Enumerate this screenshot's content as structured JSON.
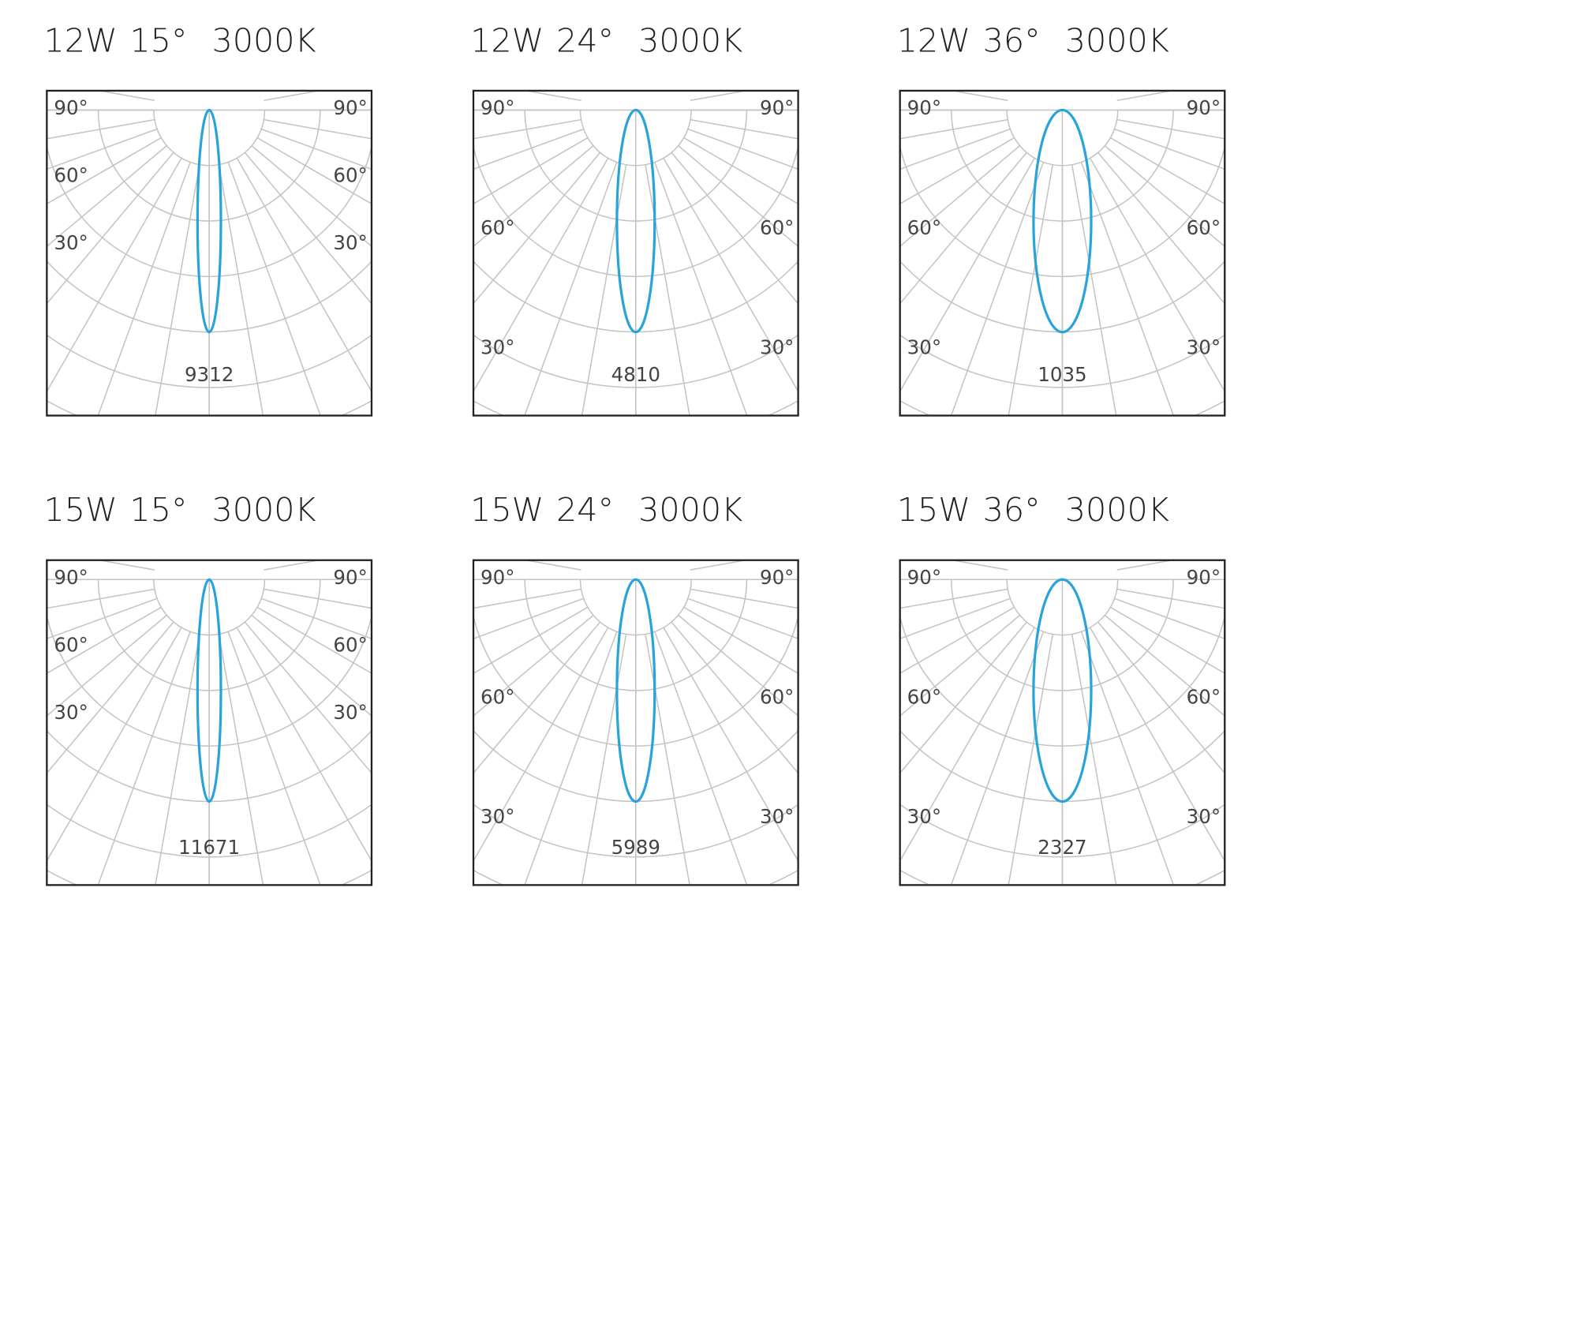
{
  "chart_data": [
    {
      "type": "polar",
      "power": "12W",
      "beam_angle": {
        "value": 15,
        "label": "15°"
      },
      "cct": "3000K",
      "max_intensity": 9312,
      "color": "#29a3dc",
      "angle_ticks": [
        {
          "value": 90,
          "label": "90°"
        },
        {
          "value": 60,
          "label": "60°"
        },
        {
          "value": 30,
          "label": "30°"
        }
      ]
    },
    {
      "type": "polar",
      "power": "12W",
      "beam_angle": {
        "value": 24,
        "label": "24°"
      },
      "cct": "3000K",
      "max_intensity": 4810,
      "color": "#29a3dc",
      "angle_ticks": [
        {
          "value": 90,
          "label": "90°"
        },
        {
          "value": 60,
          "label": "60°"
        },
        {
          "value": 30,
          "label": "30°"
        }
      ]
    },
    {
      "type": "polar",
      "power": "12W",
      "beam_angle": {
        "value": 36,
        "label": "36°"
      },
      "cct": "3000K",
      "max_intensity": 1035,
      "color": "#29a3dc",
      "angle_ticks": [
        {
          "value": 90,
          "label": "90°"
        },
        {
          "value": 60,
          "label": "60°"
        },
        {
          "value": 30,
          "label": "30°"
        }
      ]
    },
    {
      "type": "polar",
      "power": "15W",
      "beam_angle": {
        "value": 15,
        "label": "15°"
      },
      "cct": "3000K",
      "max_intensity": 11671,
      "color": "#29a3dc",
      "angle_ticks": [
        {
          "value": 90,
          "label": "90°"
        },
        {
          "value": 60,
          "label": "60°"
        },
        {
          "value": 30,
          "label": "30°"
        }
      ]
    },
    {
      "type": "polar",
      "power": "15W",
      "beam_angle": {
        "value": 24,
        "label": "24°"
      },
      "cct": "3000K",
      "max_intensity": 5989,
      "color": "#29a3dc",
      "angle_ticks": [
        {
          "value": 90,
          "label": "90°"
        },
        {
          "value": 60,
          "label": "60°"
        },
        {
          "value": 30,
          "label": "30°"
        }
      ]
    },
    {
      "type": "polar",
      "power": "15W",
      "beam_angle": {
        "value": 36,
        "label": "36°"
      },
      "cct": "3000K",
      "max_intensity": 2327,
      "color": "#29a3dc",
      "angle_ticks": [
        {
          "value": 90,
          "label": "90°"
        },
        {
          "value": 60,
          "label": "60°"
        },
        {
          "value": 30,
          "label": "30°"
        }
      ]
    }
  ]
}
